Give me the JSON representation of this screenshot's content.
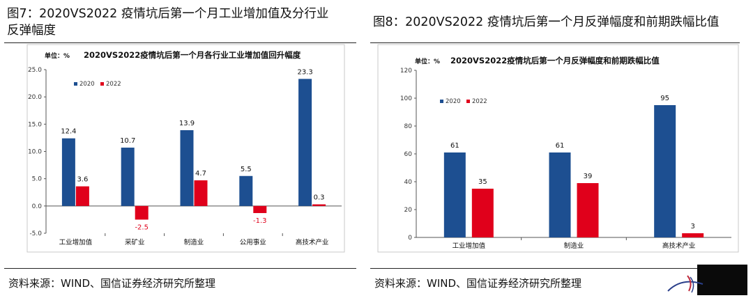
{
  "figure7": {
    "title_line1": "图7：2020VS2022 疫情坑后第一个月工业增加值及分行业",
    "title_line2": "反弹幅度",
    "source": "资料来源：WIND、国信证券经济研究所整理"
  },
  "figure8": {
    "title": "图8：2020VS2022 疫情坑后第一个月反弹幅度和前期跌幅比值",
    "source": "资料来源：WIND、国信证券经济研究所整理"
  },
  "colors": {
    "s2020": "#1d4f91",
    "s2022": "#e0001b"
  },
  "chart_data": [
    {
      "type": "bar",
      "title": "2020VS2022疫情坑后第一个月各行业工业增加值回升幅度",
      "unit_label": "单位：%",
      "categories": [
        "工业增加值",
        "采矿业",
        "制造业",
        "公用事业",
        "高技术产业"
      ],
      "series": [
        {
          "name": "2020",
          "values": [
            12.4,
            10.7,
            13.9,
            5.5,
            23.3
          ]
        },
        {
          "name": "2022",
          "values": [
            3.6,
            -2.5,
            4.7,
            -1.3,
            0.3
          ]
        }
      ],
      "value_labels": [
        [
          "12.4",
          "10.7",
          "13.9",
          "5.5",
          "23.3"
        ],
        [
          "3.6",
          "-2.5",
          "4.7",
          "-1.3",
          "0.3"
        ]
      ],
      "yticks": [
        "25.0",
        "20.0",
        "15.0",
        "10.0",
        "5.0",
        "0.0",
        "-5.0"
      ],
      "ylim": [
        -5,
        25
      ],
      "grid": false,
      "legend": "top-left"
    },
    {
      "type": "bar",
      "title": "2020VS2022疫情坑后第一个月反弹幅度和前期跌幅比值",
      "unit_label": "单位：%",
      "categories": [
        "工业增加值",
        "制造业",
        "高技术产业"
      ],
      "series": [
        {
          "name": "2020",
          "values": [
            61,
            61,
            95
          ]
        },
        {
          "name": "2022",
          "values": [
            35,
            39,
            3
          ]
        }
      ],
      "value_labels": [
        [
          "61",
          "61",
          "95"
        ],
        [
          "35",
          "39",
          "3"
        ]
      ],
      "yticks": [
        "120",
        "100",
        "80",
        "60",
        "40",
        "20",
        "0"
      ],
      "ylim": [
        0,
        120
      ],
      "grid": false,
      "legend": "top-left"
    }
  ]
}
